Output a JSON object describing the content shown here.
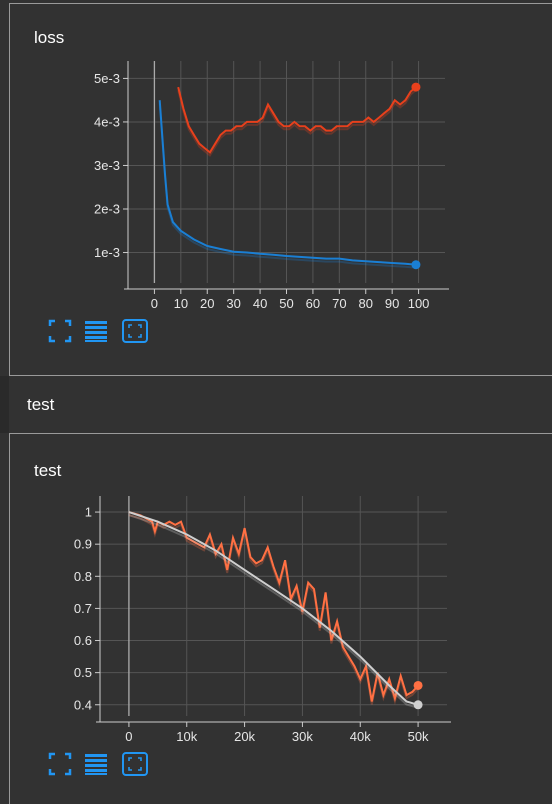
{
  "cards": [
    {
      "title": "loss"
    },
    {
      "title": "test"
    }
  ],
  "section": {
    "title": "test"
  },
  "buttons": {
    "fit_icon": "fullscreen-icon",
    "log_icon": "list-icon",
    "zoom_icon": "fit-domain-icon",
    "color": "#2196f3"
  },
  "chart_data": [
    {
      "type": "line",
      "title": "loss",
      "x_ticks": [
        "0",
        "10",
        "20",
        "30",
        "40",
        "50",
        "60",
        "70",
        "80",
        "90",
        "100"
      ],
      "y_ticks": [
        "1e-3",
        "2e-3",
        "3e-3",
        "4e-3",
        "5e-3"
      ],
      "xlim": [
        -10,
        110
      ],
      "ylim": [
        0.0003,
        0.0054
      ],
      "grid": true,
      "series": [
        {
          "color": "#e8401c",
          "x": [
            9,
            11,
            13,
            15,
            17,
            19,
            21,
            23,
            25,
            27,
            29,
            31,
            33,
            35,
            37,
            39,
            41,
            43,
            45,
            47,
            49,
            51,
            53,
            55,
            57,
            59,
            61,
            63,
            65,
            67,
            69,
            71,
            73,
            75,
            77,
            79,
            81,
            83,
            85,
            87,
            89,
            91,
            93,
            95,
            97,
            99
          ],
          "y": [
            0.0048,
            0.0043,
            0.0039,
            0.0037,
            0.0035,
            0.0034,
            0.0033,
            0.0035,
            0.0037,
            0.0038,
            0.0038,
            0.0039,
            0.0039,
            0.004,
            0.004,
            0.004,
            0.0041,
            0.0044,
            0.0042,
            0.004,
            0.0039,
            0.0039,
            0.004,
            0.0039,
            0.0039,
            0.0038,
            0.0039,
            0.0039,
            0.0038,
            0.0038,
            0.0039,
            0.0039,
            0.0039,
            0.004,
            0.004,
            0.004,
            0.0041,
            0.004,
            0.0041,
            0.0042,
            0.0043,
            0.0045,
            0.0044,
            0.0045,
            0.0047,
            0.0048
          ]
        },
        {
          "color": "#1a7fd4",
          "x": [
            2,
            4,
            5,
            7,
            10,
            15,
            20,
            25,
            30,
            35,
            40,
            45,
            50,
            55,
            60,
            65,
            70,
            75,
            80,
            85,
            90,
            95,
            99
          ],
          "y": [
            0.0045,
            0.0028,
            0.0021,
            0.0017,
            0.0015,
            0.0013,
            0.00115,
            0.00108,
            0.00102,
            0.001,
            0.00097,
            0.00095,
            0.00092,
            0.0009,
            0.00088,
            0.00086,
            0.00086,
            0.00082,
            0.0008,
            0.00078,
            0.00076,
            0.00074,
            0.00072
          ]
        }
      ]
    },
    {
      "type": "line",
      "title": "test",
      "x_ticks": [
        "0",
        "10k",
        "20k",
        "30k",
        "40k",
        "50k"
      ],
      "y_ticks": [
        "1",
        "0.9",
        "0.8",
        "0.7",
        "0.6",
        "0.5",
        "0.4"
      ],
      "xlim": [
        -5000,
        55000
      ],
      "ylim": [
        0.365,
        1.05
      ],
      "grid": true,
      "series": [
        {
          "color": "#ff7043",
          "x": [
            0,
            2000,
            4000,
            4500,
            5000,
            6000,
            7000,
            8000,
            9000,
            10000,
            11000,
            12000,
            13000,
            14000,
            15000,
            16000,
            17000,
            18000,
            19000,
            20000,
            21000,
            22000,
            23000,
            24000,
            25000,
            26000,
            27000,
            28000,
            29000,
            30000,
            31000,
            32000,
            33000,
            34000,
            35000,
            36000,
            37000,
            38000,
            39000,
            40000,
            41000,
            42000,
            43000,
            44000,
            45000,
            46000,
            47000,
            48000,
            49000,
            50000
          ],
          "y": [
            1.0,
            0.99,
            0.97,
            0.94,
            0.97,
            0.96,
            0.97,
            0.96,
            0.97,
            0.92,
            0.91,
            0.9,
            0.89,
            0.93,
            0.87,
            0.9,
            0.82,
            0.92,
            0.87,
            0.95,
            0.86,
            0.84,
            0.85,
            0.89,
            0.83,
            0.78,
            0.85,
            0.73,
            0.77,
            0.69,
            0.78,
            0.76,
            0.64,
            0.75,
            0.6,
            0.66,
            0.58,
            0.55,
            0.52,
            0.48,
            0.52,
            0.41,
            0.5,
            0.43,
            0.48,
            0.42,
            0.49,
            0.43,
            0.44,
            0.46
          ]
        },
        {
          "color": "#cfcfcf",
          "x": [
            0,
            5000,
            10000,
            15000,
            20000,
            25000,
            30000,
            35000,
            40000,
            45000,
            48000,
            50000
          ],
          "y": [
            1.0,
            0.97,
            0.93,
            0.88,
            0.82,
            0.76,
            0.7,
            0.63,
            0.55,
            0.46,
            0.41,
            0.4
          ]
        }
      ]
    }
  ]
}
